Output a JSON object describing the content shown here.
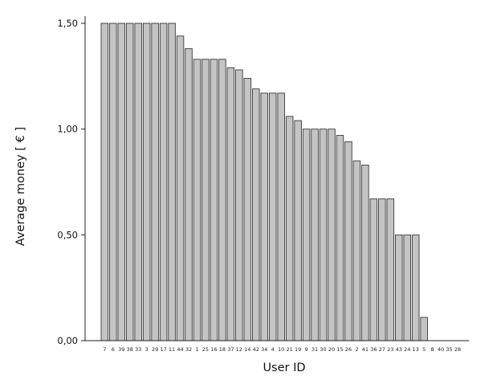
{
  "chart_data": {
    "type": "bar",
    "title": "",
    "xlabel": "User ID",
    "ylabel": "Average money [ € ]",
    "ylim": [
      0,
      1.6
    ],
    "yticks": [
      {
        "value": 0,
        "label": "0,00"
      },
      {
        "value": 0.5,
        "label": "0,50"
      },
      {
        "value": 1,
        "label": "1,00"
      },
      {
        "value": 1.5,
        "label": "1,50"
      }
    ],
    "grid": false,
    "categories": [
      "7",
      "6",
      "39",
      "38",
      "33",
      "3",
      "29",
      "17",
      "11",
      "44",
      "32",
      "1",
      "25",
      "16",
      "18",
      "37",
      "12",
      "14",
      "42",
      "34",
      "4",
      "10",
      "21",
      "19",
      "9",
      "31",
      "30",
      "20",
      "15",
      "26",
      "2",
      "41",
      "36",
      "27",
      "23",
      "43",
      "24",
      "13",
      "5",
      "8",
      "40",
      "35",
      "28"
    ],
    "values": [
      1.5,
      1.5,
      1.5,
      1.5,
      1.5,
      1.5,
      1.5,
      1.5,
      1.5,
      1.44,
      1.38,
      1.33,
      1.33,
      1.33,
      1.33,
      1.29,
      1.28,
      1.24,
      1.19,
      1.17,
      1.17,
      1.17,
      1.06,
      1.04,
      1.0,
      1.0,
      1.0,
      1.0,
      0.97,
      0.94,
      0.85,
      0.83,
      0.67,
      0.67,
      0.67,
      0.5,
      0.5,
      0.5,
      0.11,
      0,
      0,
      0,
      0
    ],
    "colors": {
      "bar_fill": "#c4c4c4",
      "bar_stroke": "#3a3a3a"
    }
  }
}
